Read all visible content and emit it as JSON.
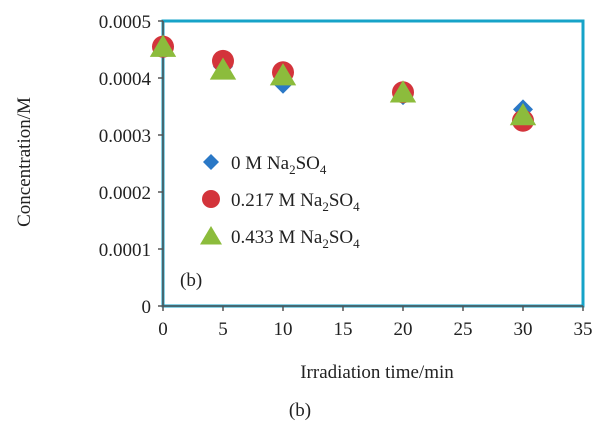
{
  "chart_data": {
    "type": "scatter",
    "title": "",
    "xlabel": "Irradiation time/min",
    "ylabel": "Concentration/M",
    "xlim": [
      0,
      35
    ],
    "ylim": [
      0,
      0.0005
    ],
    "x_ticks": [
      "0",
      "5",
      "10",
      "15",
      "20",
      "25",
      "30",
      "35"
    ],
    "y_ticks": [
      "0",
      "0.0001",
      "0.0002",
      "0.0003",
      "0.0004",
      "0.0005"
    ],
    "grid": false,
    "legend_position": "center-left",
    "panel_label": "(b)",
    "caption": "(b)",
    "frame_color": "#16a3c8",
    "series": [
      {
        "name": "0 M Na2SO4",
        "name_parts": {
          "prefix": "0 M Na",
          "sub1": "2",
          "mid": "SO",
          "sub2": "4"
        },
        "marker": "diamond",
        "color": "#2a78c6",
        "x": [
          0,
          5,
          10,
          20,
          30
        ],
        "y": [
          0.000455,
          0.00042,
          0.00039,
          0.00037,
          0.000345
        ]
      },
      {
        "name": "0.217 M Na2SO4",
        "name_parts": {
          "prefix": "0.217 M Na",
          "sub1": "2",
          "mid": "SO",
          "sub2": "4"
        },
        "marker": "circle",
        "color": "#d3343b",
        "x": [
          0,
          5,
          10,
          20,
          30
        ],
        "y": [
          0.000455,
          0.00043,
          0.00041,
          0.000375,
          0.000325
        ]
      },
      {
        "name": "0.433 M Na2SO4",
        "name_parts": {
          "prefix": "0.433 M Na",
          "sub1": "2",
          "mid": "SO",
          "sub2": "4"
        },
        "marker": "triangle",
        "color": "#8cbc3c",
        "x": [
          0,
          5,
          10,
          20,
          30
        ],
        "y": [
          0.000455,
          0.000415,
          0.000405,
          0.000375,
          0.000335
        ]
      }
    ]
  }
}
